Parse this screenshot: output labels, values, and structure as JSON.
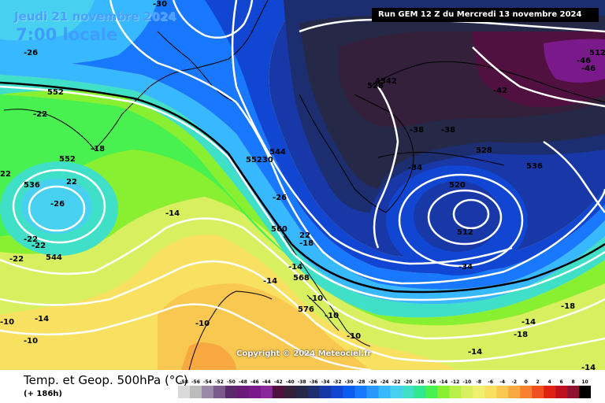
{
  "header": {
    "date": "Jeudi 21 novembre 2024",
    "time": "7:00 locale",
    "run": "Run GEM 12 Z du Mercredi 13 novembre 2024"
  },
  "copyright": "Copyright © 2024 Meteociel.fr",
  "footer": {
    "title": "Temp. et Geop. 500hPa (°C)",
    "lead": "(+ 186h)"
  },
  "scale": {
    "ticks": [
      "-58",
      "-56",
      "-54",
      "-52",
      "-50",
      "-48",
      "-46",
      "-44",
      "-42",
      "-40",
      "-38",
      "-36",
      "-34",
      "-32",
      "-30",
      "-28",
      "-26",
      "-24",
      "-22",
      "-20",
      "-18",
      "-16",
      "-14",
      "-12",
      "-10",
      "-8",
      "-6",
      "-4",
      "-2",
      "0",
      "2",
      "4",
      "6",
      "8",
      "10"
    ],
    "colors": [
      "#dadada",
      "#bcbcbc",
      "#9a8aa8",
      "#7a5a8a",
      "#5a2a6a",
      "#6a1a7a",
      "#7a1a8a",
      "#8a2a9a",
      "#501040",
      "#34203a",
      "#262848",
      "#1c2e70",
      "#1838a8",
      "#1046d2",
      "#0a5cf0",
      "#1878ff",
      "#2898ff",
      "#38b8ff",
      "#48d0f0",
      "#40e0c8",
      "#30e890",
      "#48f050",
      "#88f030",
      "#b8f048",
      "#d8f060",
      "#f0f070",
      "#f8e060",
      "#f8c850",
      "#f8a840",
      "#f88030",
      "#f05020",
      "#e02010",
      "#c01020",
      "#901030",
      "#000000"
    ]
  },
  "contour_labels": [
    {
      "id": "c-30-top",
      "text": "-30"
    },
    {
      "id": "c-26-nw",
      "text": "-26"
    },
    {
      "id": "c-552-w",
      "text": "552"
    },
    {
      "id": "c-22-w",
      "text": "-22"
    },
    {
      "id": "c-18-w",
      "text": "-18"
    },
    {
      "id": "c-552-w2",
      "text": "552"
    },
    {
      "id": "c-22-far-w",
      "text": "22"
    },
    {
      "id": "c-536-w",
      "text": "536"
    },
    {
      "id": "c-22-w2",
      "text": "22"
    },
    {
      "id": "c-26-low-w",
      "text": "-26"
    },
    {
      "id": "c-22-w3",
      "text": "-22"
    },
    {
      "id": "c-22-w4",
      "text": "-22"
    },
    {
      "id": "c-22-w5",
      "text": "-22"
    },
    {
      "id": "c-544-w",
      "text": "544"
    },
    {
      "id": "c-14-mid",
      "text": "-14"
    },
    {
      "id": "c-544-c",
      "text": "544"
    },
    {
      "id": "c-55230-c",
      "text": "55230"
    },
    {
      "id": "c-26-c",
      "text": "-26"
    },
    {
      "id": "c-560-c",
      "text": "560"
    },
    {
      "id": "c-22-c",
      "text": "22"
    },
    {
      "id": "c-18-c",
      "text": "-18"
    },
    {
      "id": "c-14-c",
      "text": "-14"
    },
    {
      "id": "c-568-c",
      "text": "568"
    },
    {
      "id": "c-14-c2",
      "text": "-14"
    },
    {
      "id": "c-10-c",
      "text": "-10"
    },
    {
      "id": "c-576-c",
      "text": "576"
    },
    {
      "id": "c-10-c2",
      "text": "-10"
    },
    {
      "id": "c-10-c3",
      "text": "-10"
    },
    {
      "id": "c-14-sw",
      "text": "-14"
    },
    {
      "id": "c-10-sw",
      "text": "-10"
    },
    {
      "id": "c-10-sw2",
      "text": "-10"
    },
    {
      "id": "c-10-sw3",
      "text": "-10"
    },
    {
      "id": "c-4342-n",
      "text": "4342"
    },
    {
      "id": "c-528-n",
      "text": "528"
    },
    {
      "id": "c-42-ne",
      "text": "-42"
    },
    {
      "id": "c-46-ne",
      "text": "-46"
    },
    {
      "id": "c-46-ne2",
      "text": "-46"
    },
    {
      "id": "c-512-ne",
      "text": "512"
    },
    {
      "id": "c-38-n",
      "text": "-38"
    },
    {
      "id": "c-38-n2",
      "text": "-38"
    },
    {
      "id": "c-528-e",
      "text": "528"
    },
    {
      "id": "c-34-e",
      "text": "-34"
    },
    {
      "id": "c-536-e",
      "text": "536"
    },
    {
      "id": "c-520-low",
      "text": "520"
    },
    {
      "id": "c-512-low",
      "text": "512"
    },
    {
      "id": "c-34-low",
      "text": "-34"
    },
    {
      "id": "c-18-e",
      "text": "-18"
    },
    {
      "id": "c-18-e2",
      "text": "-18"
    },
    {
      "id": "c-14-se",
      "text": "-14"
    },
    {
      "id": "c-14-se2",
      "text": "-14"
    },
    {
      "id": "c-14-se3",
      "text": "-14"
    }
  ]
}
